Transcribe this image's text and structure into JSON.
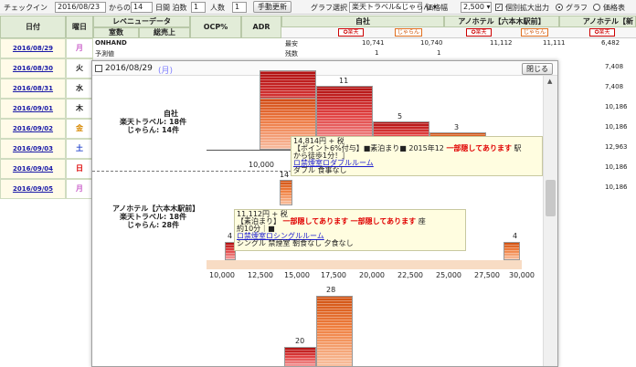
{
  "toolbar": {
    "checkin_label": "チェックイン",
    "checkin_date": "2016/08/23",
    "from_label": "からの",
    "days_value": "14",
    "days_label": "日間 泊数",
    "nights_value": "1",
    "persons_label": "人数",
    "persons_value": "1",
    "manual_update": "手動更新",
    "graph_select_label": "グラフ選択",
    "graph_select_value": "楽天トラベル&じゃらん",
    "price_range_label": "価格幅",
    "price_range_value": "2,500",
    "enlarge_output_label": "個別拡大出力",
    "radio_graph": "グラフ",
    "radio_price_table": "価格表"
  },
  "table": {
    "headers": {
      "date": "日付",
      "weekday": "曜日",
      "revenue": "レベニューデータ",
      "rooms": "室数",
      "total_sales": "総売上",
      "ocp": "OCP%",
      "adr": "ADR",
      "own": "自社",
      "comp1": "アノホテル【六本木駅前】",
      "comp2": "アノホテル【新"
    },
    "badges": {
      "rakuten": "楽天",
      "jalan": "じゃらん"
    },
    "row_labels": {
      "onhand": "ONHAND",
      "forecast": "予測値"
    },
    "summary": {
      "cheapest_label": "最安",
      "remaining_label": "残数",
      "own_rakuten": "10,741",
      "own_jalan": "10,740",
      "comp1_rakuten": "11,112",
      "comp1_jalan": "11,111",
      "comp2_rakuten": "6,482",
      "remain_a": "1",
      "remain_b": "1"
    },
    "rows": [
      {
        "date": "2016/08/29",
        "day": "月",
        "color": "#cc66cc",
        "price": "6,482"
      },
      {
        "date": "2016/08/30",
        "day": "火",
        "color": "#222222",
        "price": "7,408"
      },
      {
        "date": "2016/08/31",
        "day": "水",
        "color": "#222222",
        "price": "7,408"
      },
      {
        "date": "2016/09/01",
        "day": "木",
        "color": "#222222",
        "price": "10,186"
      },
      {
        "date": "2016/09/02",
        "day": "金",
        "color": "#d88800",
        "price": "10,186"
      },
      {
        "date": "2016/09/03",
        "day": "土",
        "color": "#2244cc",
        "price": "12,963"
      },
      {
        "date": "2016/09/04",
        "day": "日",
        "color": "#dd0000",
        "price": "10,186"
      },
      {
        "date": "2016/09/05",
        "day": "月",
        "color": "#cc66cc",
        "price": "10,186"
      }
    ]
  },
  "overlay": {
    "date_title": "2016/08/29",
    "weekday": "(月)",
    "close_button": "閉じる",
    "own_block": {
      "name": "自社",
      "rakuten_count": "楽天トラベル: 18件",
      "jalan_count": "じゃらん: 14件"
    },
    "comp_block": {
      "name": "アノホテル【六本木駅前】",
      "rakuten_count": "楽天トラベル: 18件",
      "jalan_count": "じゃらん: 28件"
    },
    "own_bar_counts": [
      "11",
      "5",
      "3"
    ],
    "own_axis_first": "10,000",
    "comp_bar_counts": [
      "4",
      "14",
      "4"
    ],
    "comp2_bar_counts": [
      "28",
      "20"
    ],
    "axis_ticks": [
      "10,000",
      "12,500",
      "15,000",
      "17,500",
      "20,000",
      "22,500",
      "25,000",
      "27,500",
      "30,000"
    ],
    "tooltip1": {
      "line1": "14,814円 + 税",
      "line2": "【ポイント6%付与】■素泊まり■ 2015年12",
      "line2_red": "一部隠してあります",
      "line2_end": "駅",
      "line3": "から徒歩1分！］",
      "line4": "ロ禁煙室ロダブルルーム",
      "line5": "ダブル   食事なし"
    },
    "tooltip2": {
      "line1": "11,112円 + 税",
      "line2": "【素泊まり】",
      "line2_red_a": "一部隠してあります",
      "line2_red_b": "一部隠してあります",
      "line2_end": "座",
      "line3": "約10分｜■",
      "line4": "ロ禁煙室ロシングルルーム",
      "line5": "シングル  禁煙室  朝食なし 夕食なし"
    }
  }
}
